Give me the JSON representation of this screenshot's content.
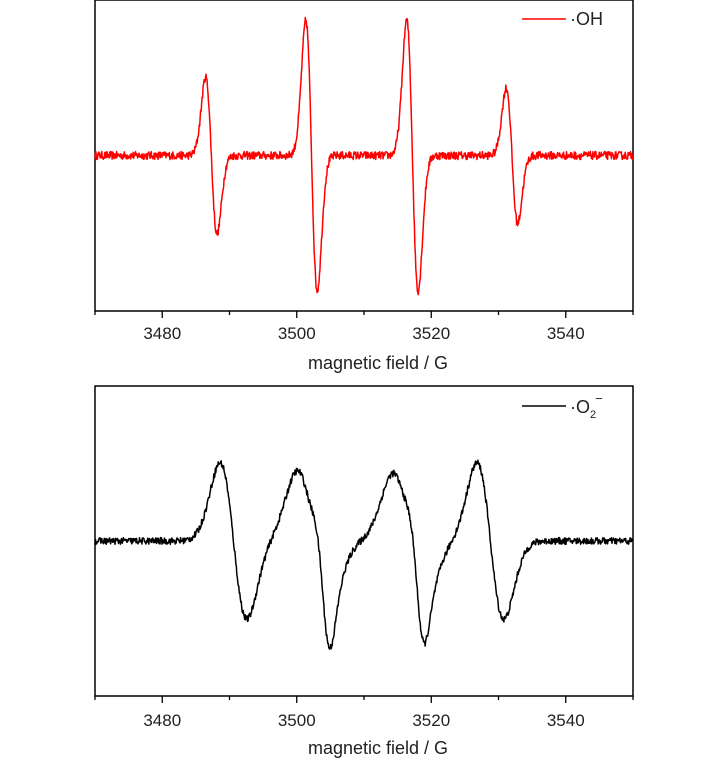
{
  "chart_data": [
    {
      "type": "line",
      "title": "",
      "xlabel": "magnetic field / G",
      "ylabel": "",
      "xlim": [
        3470,
        3550
      ],
      "ylim": [
        -1.15,
        1.15
      ],
      "xticks": [
        3480,
        3500,
        3520,
        3540
      ],
      "grid": false,
      "legend": {
        "position": "top-right",
        "entries": [
          {
            "label": "·OH",
            "color": "#ff0000"
          }
        ]
      },
      "series": [
        {
          "color": "#ff0000",
          "noise": 0.03,
          "lines": [
            {
              "center": 3487.3,
              "amplitude": 0.58,
              "width": 0.85
            },
            {
              "center": 3502.2,
              "amplitude": 1.0,
              "width": 0.85
            },
            {
              "center": 3517.2,
              "amplitude": 1.0,
              "width": 0.85
            },
            {
              "center": 3532.0,
              "amplitude": 0.5,
              "width": 0.85
            }
          ]
        }
      ]
    },
    {
      "type": "line",
      "title": "",
      "xlabel": "magnetic field / G",
      "ylabel": "",
      "xlim": [
        3470,
        3550
      ],
      "ylim": [
        -1.15,
        1.15
      ],
      "xticks": [
        3480,
        3500,
        3520,
        3540
      ],
      "grid": false,
      "legend": {
        "position": "top-right",
        "entries": [
          {
            "label": "·O",
            "subscript": "2",
            "superscript": "−",
            "color": "#000000"
          }
        ]
      },
      "series": [
        {
          "color": "#000000",
          "noise": 0.025,
          "lines": [
            {
              "center": 3490.6,
              "amplitude": 0.58,
              "width": 2.0
            },
            {
              "center": 3502.4,
              "amplitude": 0.52,
              "width": 2.3
            },
            {
              "center": 3504.0,
              "amplitude": 0.28,
              "width": 1.0
            },
            {
              "center": 3516.6,
              "amplitude": 0.5,
              "width": 2.3
            },
            {
              "center": 3518.0,
              "amplitude": 0.26,
              "width": 1.0
            },
            {
              "center": 3528.8,
              "amplitude": 0.58,
              "width": 2.0
            }
          ]
        }
      ]
    }
  ]
}
